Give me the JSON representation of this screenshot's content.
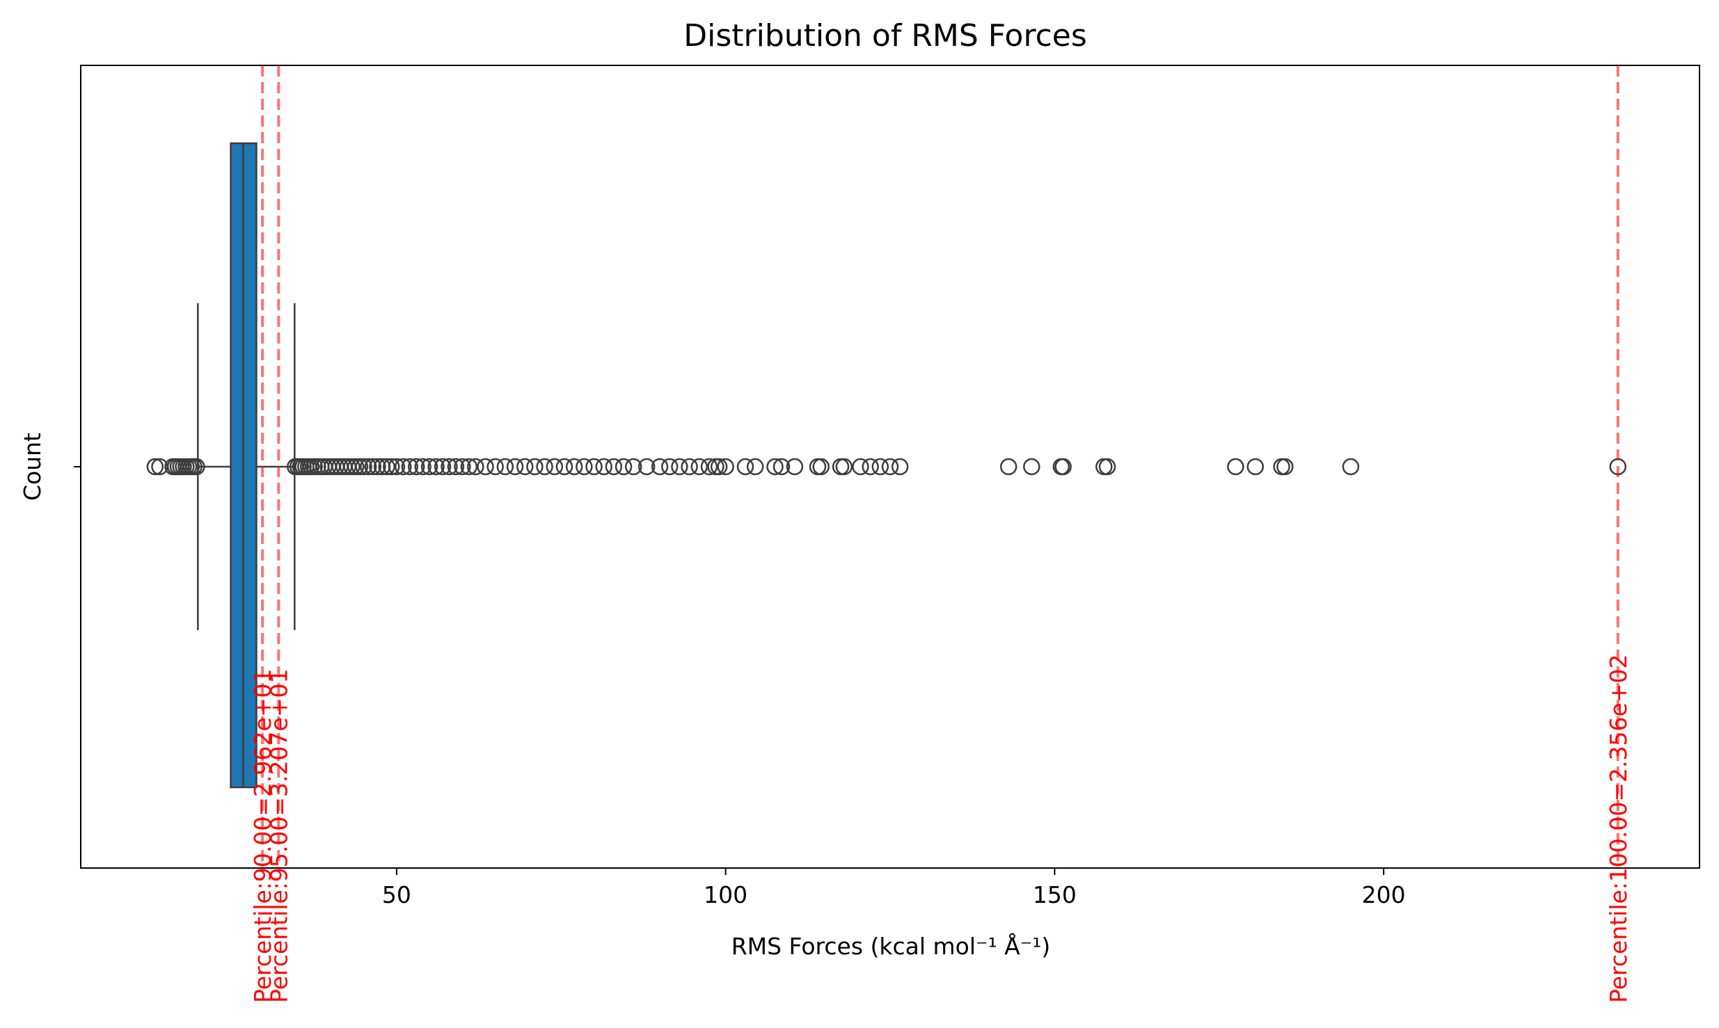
{
  "chart_data": {
    "type": "boxplot",
    "title": "Distribution of RMS Forces",
    "xlabel": "RMS Forces (kcal mol⁻¹ Å⁻¹)",
    "ylabel": "Count",
    "xlim": [
      2,
      248
    ],
    "x_ticks": [
      50,
      100,
      150,
      200
    ],
    "box": {
      "whisker_low": 19.8,
      "q1": 24.8,
      "median": 26.7,
      "q3": 28.7,
      "whisker_high": 34.5,
      "color": "#1f77b4",
      "edge_color": "#3d3d3d"
    },
    "outliers_low": [
      13.3,
      14.0,
      16.0,
      16.4,
      16.8,
      17.2,
      17.6,
      18.0,
      18.4,
      18.8,
      19.2,
      19.6
    ],
    "outliers_high": [
      34.6,
      35.0,
      35.4,
      35.8,
      36.2,
      36.6,
      37.0,
      37.5,
      38.0,
      38.5,
      39.0,
      39.6,
      40.2,
      40.8,
      41.4,
      42.0,
      42.6,
      43.2,
      43.8,
      44.4,
      45.0,
      45.7,
      46.4,
      47.1,
      47.8,
      48.5,
      49.2,
      50.0,
      51.0,
      52.0,
      53.0,
      54.0,
      55.0,
      56.0,
      57.0,
      58.0,
      59.0,
      60.0,
      61.0,
      62.0,
      63.5,
      65.0,
      66.5,
      68.0,
      69.5,
      71.0,
      72.5,
      74.0,
      75.5,
      77.0,
      78.5,
      80.0,
      81.5,
      83.0,
      84.5,
      86.0,
      88.0,
      90.0,
      91.5,
      93.0,
      94.5,
      96.0,
      97.5,
      98.5,
      99.0,
      100.0,
      103.0,
      104.5,
      107.5,
      108.5,
      110.5,
      114.0,
      114.5,
      117.5,
      118.0,
      120.5,
      122.0,
      123.5,
      125.0,
      126.5,
      143.0,
      146.5,
      151.0,
      151.3,
      157.5,
      158.0,
      177.5,
      180.5,
      184.5,
      185.0,
      195.0,
      235.6
    ],
    "reference_lines": [
      {
        "value": 29.62,
        "label": "Percentile:90.00=2.962e+01"
      },
      {
        "value": 32.07,
        "label": "Percentile:95.00=3.207e+01"
      },
      {
        "value": 235.6,
        "label": "Percentile:100.00=2.356e+02"
      }
    ],
    "reference_color": "#ff0000",
    "grid": false,
    "legend": "none"
  }
}
